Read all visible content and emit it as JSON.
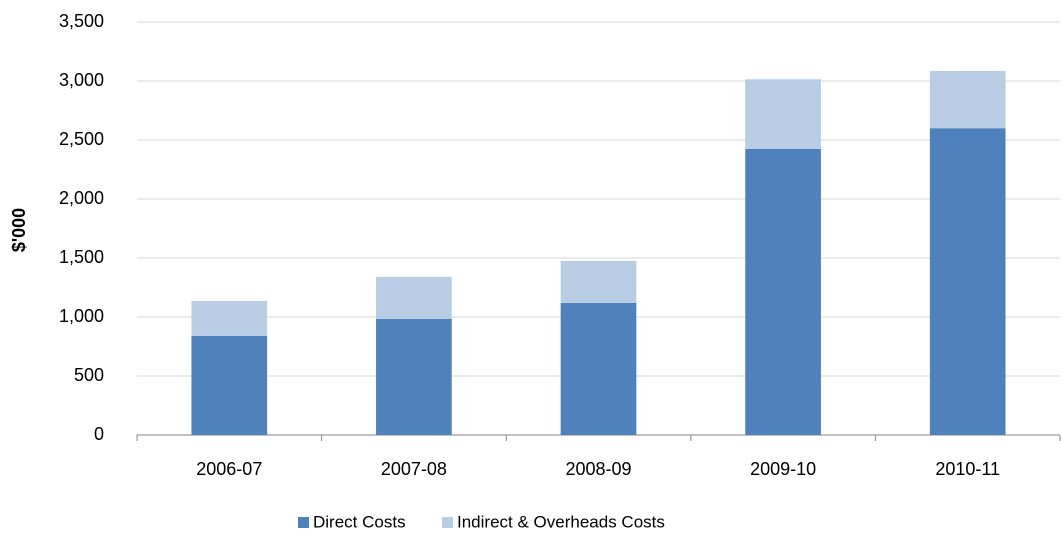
{
  "chart_data": {
    "type": "stacked_bar",
    "y_label": "$'000",
    "categories": [
      "2006-07",
      "2007-08",
      "2008-09",
      "2009-10",
      "2010-11"
    ],
    "series": [
      {
        "name": "Direct Costs",
        "color": "#4f81bd",
        "values": [
          840,
          985,
          1120,
          2425,
          2600
        ]
      },
      {
        "name": "Indirect & Overheads Costs",
        "color": "#b9cde5",
        "values": [
          295,
          355,
          355,
          590,
          485
        ]
      }
    ],
    "ylim": [
      0,
      3500
    ],
    "yticks": [
      0,
      500,
      {
        "value": 1000,
        "label": "1,000"
      },
      {
        "value": 1500,
        "label": "1,500"
      },
      {
        "value": 2000,
        "label": "2,000"
      },
      {
        "value": 2500,
        "label": "2,500"
      },
      {
        "value": 3000,
        "label": "3,000"
      },
      {
        "value": 3500,
        "label": "3,500"
      }
    ],
    "grid": true,
    "legend": "bottom"
  }
}
